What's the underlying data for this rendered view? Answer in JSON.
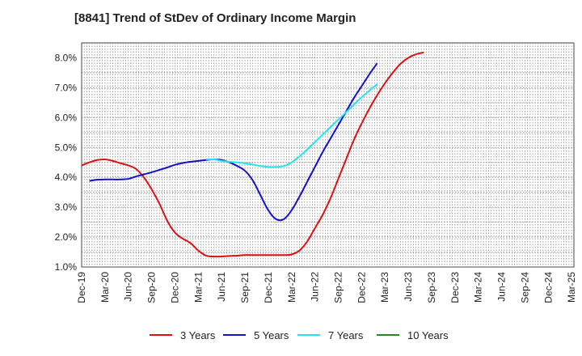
{
  "chart_data": {
    "type": "line",
    "title": "[8841]  Trend of StDev of Ordinary Income Margin",
    "xlabel": "",
    "ylabel": "",
    "ylim": [
      1.0,
      8.5
    ],
    "y_ticks": [
      "1.0%",
      "2.0%",
      "3.0%",
      "4.0%",
      "5.0%",
      "6.0%",
      "7.0%",
      "8.0%"
    ],
    "y_tick_values": [
      1,
      2,
      3,
      4,
      5,
      6,
      7,
      8
    ],
    "x_tick_labels": [
      "Dec-19",
      "Mar-20",
      "Jun-20",
      "Sep-20",
      "Dec-20",
      "Mar-21",
      "Jun-21",
      "Sep-21",
      "Dec-21",
      "Mar-22",
      "Jun-22",
      "Sep-22",
      "Dec-22",
      "Mar-23",
      "Jun-23",
      "Sep-23",
      "Dec-23",
      "Mar-24",
      "Jun-24",
      "Sep-24",
      "Dec-24",
      "Mar-25"
    ],
    "grid": true,
    "legend_position": "bottom",
    "series": [
      {
        "name": "3 Years",
        "color": "#dd1111",
        "start_index": 0,
        "values": [
          4.4,
          4.5,
          4.58,
          4.6,
          4.55,
          4.47,
          4.4,
          4.28,
          4.0,
          3.6,
          3.12,
          2.55,
          2.15,
          1.95,
          1.8,
          1.55,
          1.38,
          1.35,
          1.35,
          1.37,
          1.38,
          1.4,
          1.4,
          1.4,
          1.4,
          1.4,
          1.4,
          1.42,
          1.55,
          1.85,
          2.3,
          2.75,
          3.3,
          3.95,
          4.6,
          5.25,
          5.8,
          6.3,
          6.75,
          7.15,
          7.5,
          7.8,
          8.0,
          8.12,
          8.18
        ]
      },
      {
        "name": "5 Years",
        "color": "#1111cc",
        "start_index": 1,
        "values": [
          3.88,
          3.92,
          3.93,
          3.93,
          3.93,
          3.95,
          4.03,
          4.1,
          4.17,
          4.25,
          4.33,
          4.42,
          4.48,
          4.52,
          4.55,
          4.58,
          4.6,
          4.58,
          4.5,
          4.38,
          4.22,
          3.9,
          3.4,
          2.9,
          2.6,
          2.6,
          2.9,
          3.35,
          3.85,
          4.35,
          4.85,
          5.3,
          5.75,
          6.2,
          6.65,
          7.05,
          7.45,
          7.82
        ]
      },
      {
        "name": "7 Years",
        "color": "#22e5ee",
        "start_index": 16,
        "values": [
          4.6,
          4.6,
          4.55,
          4.52,
          4.5,
          4.47,
          4.43,
          4.38,
          4.35,
          4.35,
          4.38,
          4.5,
          4.7,
          4.93,
          5.18,
          5.43,
          5.68,
          5.93,
          6.18,
          6.43,
          6.68,
          6.9,
          7.12
        ]
      },
      {
        "name": "10 Years",
        "color": "#228822",
        "start_index": 0,
        "values": []
      }
    ]
  }
}
